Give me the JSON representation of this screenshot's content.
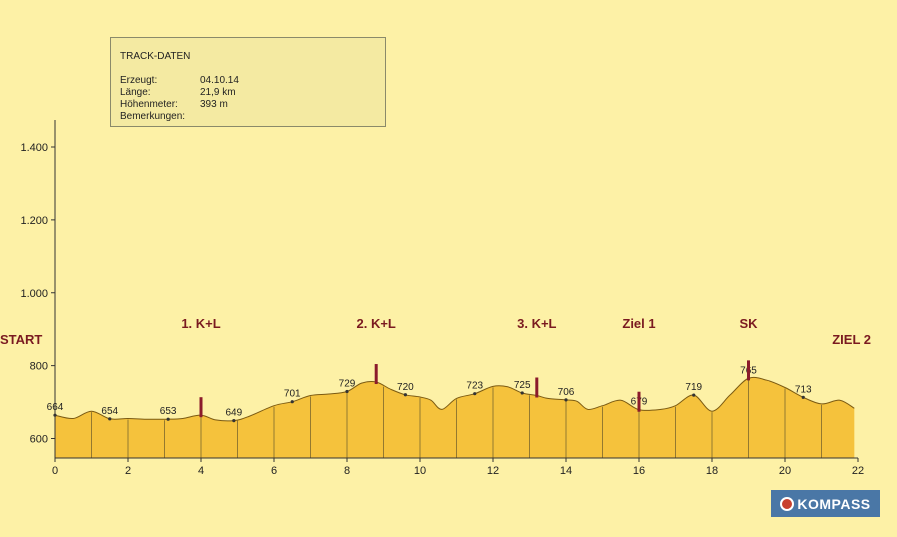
{
  "infobox": {
    "title": "TRACK-DATEN",
    "rows": [
      {
        "key": "Erzeugt:",
        "value": "04.10.14"
      },
      {
        "key": "Länge:",
        "value": "21,9 km"
      },
      {
        "key": "Höhenmeter:",
        "value": "393 m"
      },
      {
        "key": "Bemerkungen:",
        "value": ""
      }
    ]
  },
  "logo": {
    "text": "KOMPASS",
    "icon": "compass-rose-icon"
  },
  "colors": {
    "fill": "#f5c23c",
    "outline": "#7b5a12",
    "marker": "#8b1b2b",
    "label": "#7a1a20",
    "background": "#fdf1a6"
  },
  "chart_data": {
    "type": "area",
    "title": "",
    "xlabel": "",
    "ylabel": "",
    "xlim": [
      0,
      22
    ],
    "ylim": [
      550,
      1450
    ],
    "x_ticks": [
      0,
      2,
      4,
      6,
      8,
      10,
      12,
      14,
      16,
      18,
      20,
      22
    ],
    "x_tick_labels": [
      "0",
      "2",
      "4",
      "6",
      "8",
      "10",
      "12",
      "14",
      "16",
      "18",
      "20",
      "22"
    ],
    "y_ticks": [
      600,
      800,
      1000,
      1200,
      1400
    ],
    "y_tick_labels": [
      "600",
      "800",
      "1.000",
      "1.200",
      "1.400"
    ],
    "grid": false,
    "x_gridlines_at": [
      1,
      2,
      3,
      4,
      5,
      6,
      7,
      8,
      9,
      10,
      11,
      12,
      13,
      14,
      15,
      16,
      17,
      18,
      19,
      20,
      21
    ],
    "series": [
      {
        "x": [
          0,
          0.5,
          1,
          1.5,
          2,
          2.5,
          3.1,
          3.5,
          4,
          4.4,
          4.9,
          5.3,
          6,
          6.5,
          7,
          7.5,
          8,
          8.4,
          8.8,
          9.2,
          9.6,
          10,
          10.3,
          10.6,
          11,
          11.5,
          12,
          12.4,
          12.8,
          13.2,
          13.5,
          14,
          14.3,
          14.6,
          15,
          15.5,
          16,
          16.6,
          17,
          17.5,
          18,
          18.5,
          19,
          19.5,
          20,
          20.5,
          21,
          21.5,
          21.9
        ],
        "y": [
          664,
          655,
          675,
          654,
          655,
          653,
          653,
          655,
          664,
          651,
          649,
          660,
          690,
          701,
          718,
          722,
          729,
          752,
          755,
          735,
          720,
          714,
          705,
          680,
          710,
          723,
          743,
          742,
          725,
          718,
          710,
          706,
          702,
          680,
          690,
          705,
          679,
          680,
          690,
          719,
          675,
          720,
          765,
          760,
          740,
          713,
          695,
          705,
          683
        ]
      }
    ],
    "point_labels": [
      {
        "x": 0,
        "y": 664,
        "label": "664"
      },
      {
        "x": 1.5,
        "y": 654,
        "label": "654"
      },
      {
        "x": 3.1,
        "y": 653,
        "label": "653"
      },
      {
        "x": 4.9,
        "y": 649,
        "label": "649"
      },
      {
        "x": 6.5,
        "y": 701,
        "label": "701"
      },
      {
        "x": 8,
        "y": 729,
        "label": "729"
      },
      {
        "x": 9.6,
        "y": 720,
        "label": "720"
      },
      {
        "x": 11.5,
        "y": 723,
        "label": "723"
      },
      {
        "x": 12.8,
        "y": 725,
        "label": "725"
      },
      {
        "x": 14,
        "y": 706,
        "label": "706"
      },
      {
        "x": 16,
        "y": 679,
        "label": "679"
      },
      {
        "x": 17.5,
        "y": 719,
        "label": "719"
      },
      {
        "x": 19,
        "y": 765,
        "label": "765"
      },
      {
        "x": 20.5,
        "y": 713,
        "label": "713"
      }
    ],
    "annotations": [
      {
        "x": 0,
        "label": "START",
        "marker": false
      },
      {
        "x": 4,
        "label": "1. K+L",
        "marker": true
      },
      {
        "x": 8.8,
        "label": "2. K+L",
        "marker": true
      },
      {
        "x": 13.2,
        "label": "3. K+L",
        "marker": true
      },
      {
        "x": 16,
        "label": "Ziel 1",
        "marker": true
      },
      {
        "x": 19,
        "label": "SK",
        "marker": true
      },
      {
        "x": 21.9,
        "label": "ZIEL 2",
        "marker": false
      }
    ]
  }
}
